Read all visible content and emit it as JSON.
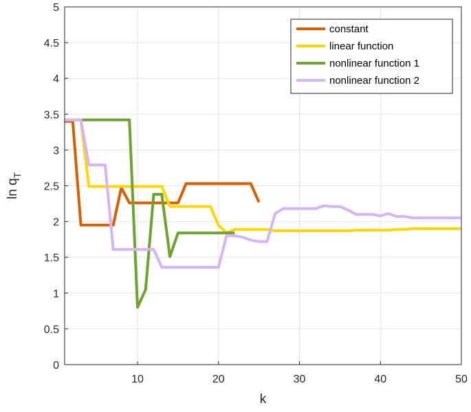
{
  "chart_data": {
    "type": "line",
    "xlabel": "k",
    "ylabel": "ln q",
    "ylabel_subscript": "T",
    "xlim": [
      1,
      50
    ],
    "ylim": [
      0,
      5
    ],
    "xticks": [
      10,
      20,
      30,
      40,
      50
    ],
    "yticks": [
      0,
      0.5,
      1,
      1.5,
      2,
      2.5,
      3,
      3.5,
      4,
      4.5,
      5
    ],
    "xtick_labels": [
      "10",
      "20",
      "30",
      "40",
      "50"
    ],
    "ytick_labels": [
      "0",
      "0.5",
      "1",
      "1.5",
      "2",
      "2.5",
      "3",
      "3.5",
      "4",
      "4.5",
      "5"
    ],
    "grid": true,
    "legend_position": "top-right",
    "series": [
      {
        "name": "constant",
        "color": "#D95F02",
        "x": [
          1,
          2,
          3,
          4,
          5,
          6,
          7,
          8,
          9,
          10,
          11,
          12,
          13,
          14,
          15,
          16,
          17,
          18,
          19,
          20,
          21,
          22,
          23,
          24,
          25
        ],
        "y": [
          3.4,
          3.4,
          1.95,
          1.95,
          1.95,
          1.95,
          1.95,
          2.47,
          2.26,
          2.26,
          2.26,
          2.26,
          2.26,
          2.26,
          2.26,
          2.53,
          2.53,
          2.53,
          2.53,
          2.53,
          2.53,
          2.53,
          2.53,
          2.53,
          2.27
        ]
      },
      {
        "name": "linear function",
        "color": "#FFD700",
        "x": [
          1,
          2,
          3,
          4,
          5,
          6,
          7,
          8,
          9,
          10,
          11,
          12,
          13,
          14,
          15,
          16,
          17,
          18,
          19,
          20,
          21,
          22,
          23,
          24,
          25,
          26,
          27,
          28,
          29,
          30,
          31,
          32,
          33,
          34,
          35,
          36,
          37,
          38,
          39,
          40,
          41,
          42,
          43,
          44,
          45,
          46,
          47,
          48,
          49,
          50
        ],
        "y": [
          3.42,
          3.42,
          3.42,
          2.49,
          2.49,
          2.49,
          2.49,
          2.49,
          2.49,
          2.49,
          2.49,
          2.49,
          2.49,
          2.21,
          2.21,
          2.21,
          2.21,
          2.21,
          2.21,
          1.95,
          1.84,
          1.89,
          1.89,
          1.89,
          1.89,
          1.89,
          1.87,
          1.87,
          1.87,
          1.87,
          1.87,
          1.87,
          1.87,
          1.87,
          1.87,
          1.87,
          1.88,
          1.88,
          1.88,
          1.88,
          1.88,
          1.89,
          1.89,
          1.9,
          1.9,
          1.9,
          1.9,
          1.9,
          1.9,
          1.9
        ]
      },
      {
        "name": "nonlinear function 1",
        "color": "#6EA32D",
        "x": [
          1,
          2,
          3,
          4,
          5,
          6,
          7,
          8,
          9,
          10,
          11,
          12,
          13,
          14,
          15,
          16,
          17,
          18,
          19,
          20,
          21,
          22
        ],
        "y": [
          3.42,
          3.42,
          3.42,
          3.42,
          3.42,
          3.42,
          3.42,
          3.42,
          3.42,
          0.8,
          1.05,
          2.38,
          2.38,
          1.51,
          1.84,
          1.84,
          1.84,
          1.84,
          1.84,
          1.84,
          1.84,
          1.84
        ]
      },
      {
        "name": "nonlinear function 2",
        "color": "#D5B4F5",
        "x": [
          1,
          2,
          3,
          4,
          5,
          6,
          7,
          8,
          9,
          10,
          11,
          12,
          13,
          14,
          15,
          16,
          17,
          18,
          19,
          20,
          21,
          22,
          23,
          24,
          25,
          26,
          27,
          28,
          29,
          30,
          31,
          32,
          33,
          34,
          35,
          36,
          37,
          38,
          39,
          40,
          41,
          42,
          43,
          44,
          45,
          46,
          47,
          48,
          49,
          50
        ],
        "y": [
          3.42,
          3.42,
          3.42,
          2.79,
          2.79,
          2.79,
          1.61,
          1.61,
          1.61,
          1.61,
          1.61,
          1.61,
          1.36,
          1.36,
          1.36,
          1.36,
          1.36,
          1.36,
          1.36,
          1.36,
          1.8,
          1.8,
          1.78,
          1.74,
          1.72,
          1.72,
          2.11,
          2.18,
          2.18,
          2.18,
          2.18,
          2.18,
          2.22,
          2.21,
          2.21,
          2.16,
          2.1,
          2.1,
          2.1,
          2.08,
          2.11,
          2.07,
          2.07,
          2.05,
          2.05,
          2.05,
          2.05,
          2.05,
          2.05,
          2.05
        ]
      }
    ]
  }
}
